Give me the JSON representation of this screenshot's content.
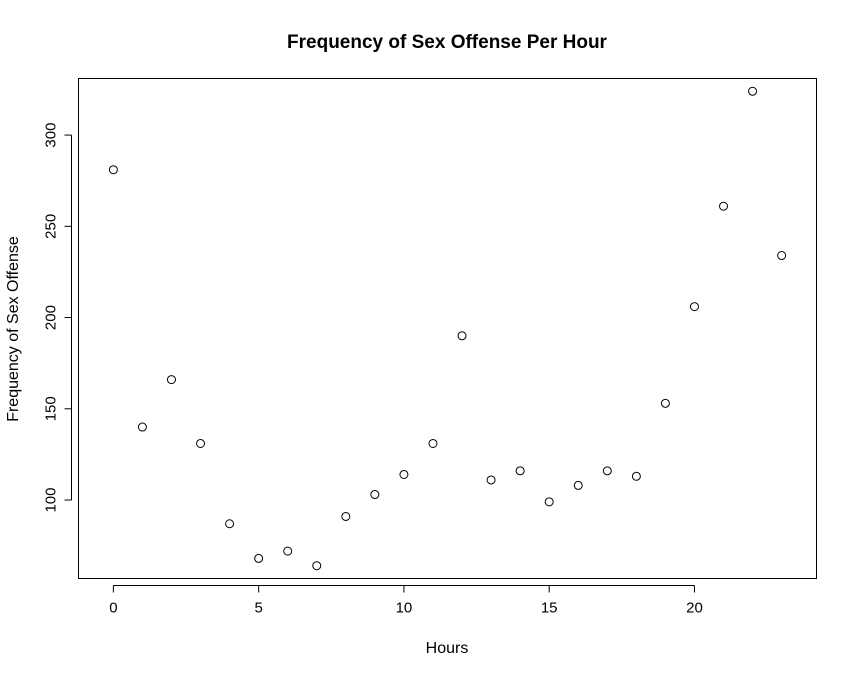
{
  "chart_data": {
    "type": "scatter",
    "title": "Frequency of Sex Offense Per Hour",
    "xlabel": "Hours",
    "ylabel": "Frequency of Sex Offense",
    "x": [
      0,
      1,
      2,
      3,
      4,
      5,
      6,
      7,
      8,
      9,
      10,
      11,
      12,
      13,
      14,
      15,
      16,
      17,
      18,
      19,
      20,
      21,
      22,
      23
    ],
    "y": [
      281,
      140,
      166,
      131,
      87,
      68,
      72,
      64,
      91,
      103,
      114,
      131,
      190,
      111,
      116,
      99,
      108,
      116,
      113,
      153,
      206,
      261,
      324,
      234
    ],
    "xlim": [
      -1.2,
      24.2
    ],
    "ylim": [
      57,
      331
    ],
    "xticks": [
      0,
      5,
      10,
      15,
      20
    ],
    "yticks": [
      100,
      150,
      200,
      250,
      300
    ],
    "grid": false,
    "legend": "none",
    "colors": {
      "points": "#000000",
      "frame": "#000000"
    }
  }
}
